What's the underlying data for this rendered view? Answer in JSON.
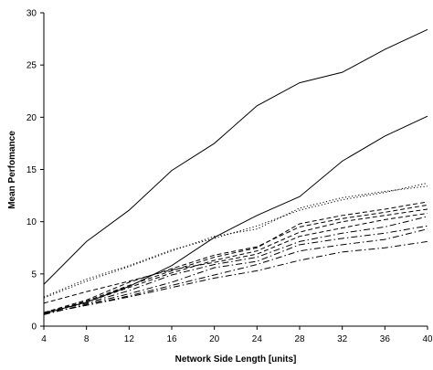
{
  "chart_data": {
    "type": "line",
    "title": "",
    "xlabel": "Network Side Length [units]",
    "ylabel": "Mean Perfomance",
    "x": [
      4,
      8,
      12,
      16,
      20,
      24,
      28,
      32,
      36,
      40
    ],
    "xticks": [
      "4",
      "8",
      "12",
      "16",
      "20",
      "24",
      "28",
      "32",
      "36",
      "40"
    ],
    "yticks": [
      "0",
      "5",
      "10",
      "15",
      "20",
      "25",
      "30"
    ],
    "xlim": [
      4,
      40
    ],
    "ylim": [
      0,
      30
    ],
    "grid": false,
    "legend": "none",
    "series": [
      {
        "style": "solid",
        "values": [
          4.0,
          8.1,
          11.1,
          14.9,
          17.5,
          21.1,
          23.3,
          24.3,
          26.5,
          28.4
        ]
      },
      {
        "style": "solid",
        "values": [
          1.2,
          2.3,
          3.8,
          5.8,
          8.5,
          10.6,
          12.4,
          15.8,
          18.2,
          20.1
        ]
      },
      {
        "style": "dotted",
        "values": [
          2.8,
          4.5,
          5.8,
          7.3,
          8.4,
          9.6,
          11.1,
          12.1,
          12.8,
          13.7
        ]
      },
      {
        "style": "dotted",
        "values": [
          2.7,
          4.3,
          5.7,
          7.2,
          8.6,
          9.3,
          11.3,
          12.3,
          12.9,
          13.4
        ]
      },
      {
        "style": "dashed",
        "values": [
          1.2,
          2.4,
          3.9,
          5.3,
          6.6,
          7.5,
          9.8,
          10.6,
          11.2,
          11.9
        ]
      },
      {
        "style": "dashed",
        "values": [
          1.3,
          2.5,
          4.2,
          5.5,
          6.8,
          7.6,
          9.5,
          10.3,
          10.9,
          11.6
        ]
      },
      {
        "style": "dashed",
        "values": [
          1.2,
          2.3,
          3.7,
          5.1,
          6.3,
          7.2,
          9.0,
          10.0,
          10.6,
          11.2
        ]
      },
      {
        "style": "dashed",
        "values": [
          2.2,
          3.3,
          4.3,
          5.4,
          6.1,
          6.9,
          8.6,
          9.4,
          10.2,
          10.8
        ]
      },
      {
        "style": "dashdot",
        "values": [
          1.3,
          2.2,
          3.4,
          4.9,
          5.9,
          6.6,
          8.1,
          8.9,
          9.5,
          10.5
        ]
      },
      {
        "style": "dashdot",
        "values": [
          1.1,
          2.1,
          3.1,
          4.2,
          5.6,
          6.2,
          7.8,
          8.4,
          8.9,
          9.6
        ]
      },
      {
        "style": "dashdot",
        "values": [
          1.2,
          2.0,
          2.9,
          3.9,
          4.9,
          5.9,
          7.2,
          7.8,
          8.3,
          9.3
        ]
      },
      {
        "style": "dashdot",
        "values": [
          1.2,
          2.0,
          2.8,
          3.7,
          4.6,
          5.3,
          6.3,
          7.1,
          7.5,
          8.1
        ]
      }
    ]
  }
}
